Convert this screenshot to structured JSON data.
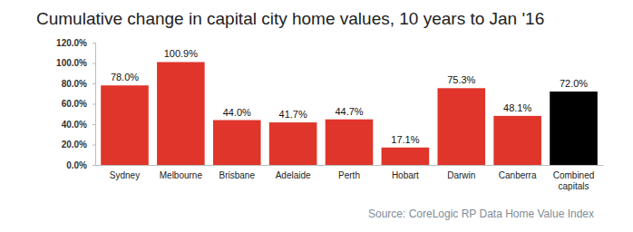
{
  "chart_data": {
    "type": "bar",
    "title": "Cumulative change in capital city home values, 10 years to Jan '16",
    "source": "Source: CoreLogic RP Data Home Value Index",
    "categories": [
      "Sydney",
      "Melbourne",
      "Brisbane",
      "Adelaide",
      "Perth",
      "Hobart",
      "Darwin",
      "Canberra",
      "Combined capitals"
    ],
    "values": [
      78.0,
      100.9,
      44.0,
      41.7,
      44.7,
      17.1,
      75.3,
      48.1,
      72.0
    ],
    "value_labels": [
      "78.0%",
      "100.9%",
      "44.0%",
      "41.7%",
      "44.7%",
      "17.1%",
      "75.3%",
      "48.1%",
      "72.0%"
    ],
    "colors": [
      "#e0352b",
      "#e0352b",
      "#e0352b",
      "#e0352b",
      "#e0352b",
      "#e0352b",
      "#e0352b",
      "#e0352b",
      "#000000"
    ],
    "ylim": [
      0,
      120
    ],
    "yticks": [
      {
        "value": 0,
        "label": "0.0%"
      },
      {
        "value": 20,
        "label": "20.0%"
      },
      {
        "value": 40,
        "label": "40.0%"
      },
      {
        "value": 60,
        "label": "60.0%"
      },
      {
        "value": 80,
        "label": "80.0%"
      },
      {
        "value": 100,
        "label": "100.0%"
      },
      {
        "value": 120,
        "label": "120.0%"
      }
    ],
    "grid": false,
    "data_labels": true
  }
}
